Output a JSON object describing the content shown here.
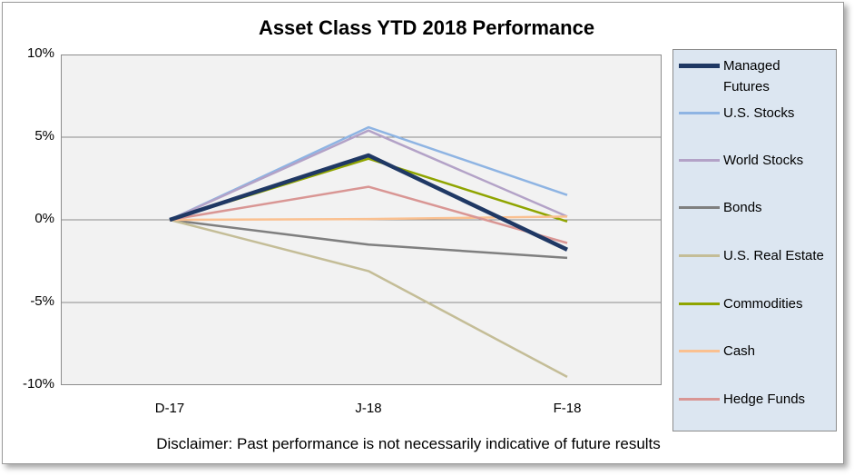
{
  "chart_data": {
    "type": "line",
    "title": "Asset Class YTD 2018 Performance",
    "xlabel": "",
    "ylabel": "",
    "categories": [
      "D-17",
      "J-18",
      "F-18"
    ],
    "y_ticks": [
      "10%",
      "5%",
      "0%",
      "-5%",
      "-10%"
    ],
    "ylim": [
      -10,
      10
    ],
    "y_unit": "%",
    "grid": true,
    "legend_position": "right",
    "series": [
      {
        "name": "Managed Futures",
        "values": [
          0,
          3.9,
          -1.8
        ],
        "color": "#1f3864",
        "emphasis": true
      },
      {
        "name": "U.S. Stocks",
        "values": [
          0,
          5.6,
          1.5
        ],
        "color": "#8eb4e3"
      },
      {
        "name": "World Stocks",
        "values": [
          0,
          5.4,
          0.2
        ],
        "color": "#b3a2c7"
      },
      {
        "name": "Bonds",
        "values": [
          0,
          -1.5,
          -2.3
        ],
        "color": "#7f7f7f"
      },
      {
        "name": "U.S. Real Estate",
        "values": [
          0,
          -3.1,
          -9.5
        ],
        "color": "#c4bd97"
      },
      {
        "name": "Commodities",
        "values": [
          0,
          3.7,
          -0.1
        ],
        "color": "#8fa400"
      },
      {
        "name": "Cash",
        "values": [
          0,
          0.05,
          0.2
        ],
        "color": "#fac090"
      },
      {
        "name": "Hedge Funds",
        "values": [
          0,
          2.0,
          -1.4
        ],
        "color": "#d99694"
      }
    ]
  },
  "disclaimer": "Disclaimer: Past performance is not necessarily indicative of future results"
}
